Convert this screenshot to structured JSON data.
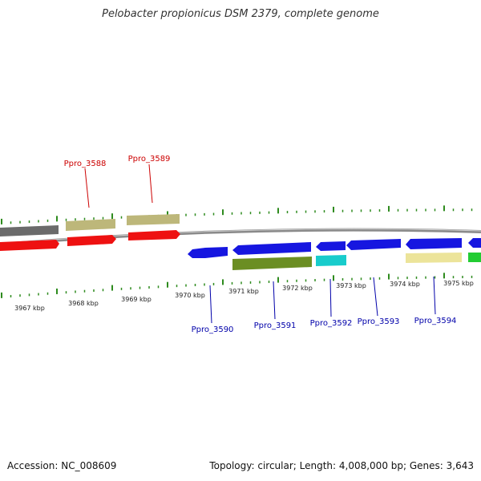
{
  "title": "Pelobacter propionicus DSM 2379, complete genome",
  "footer": {
    "accession": "Accession: NC_008609",
    "summary": "Topology: circular; Length: 4,008,000 bp; Genes: 3,643"
  },
  "ruler_labels": [
    "3967 kbp",
    "3968 kbp",
    "3969 kbp",
    "3970 kbp",
    "3971 kbp",
    "3972 kbp",
    "3973 kbp",
    "3974 kbp",
    "3975 kbp"
  ],
  "gene_labels": {
    "ppro_3588": "Ppro_3588",
    "ppro_3589": "Ppro_3589",
    "ppro_3590": "Ppro_3590",
    "ppro_3591": "Ppro_3591",
    "ppro_3592": "Ppro_3592",
    "ppro_3593": "Ppro_3593",
    "ppro_3594": "Ppro_3594"
  },
  "colors": {
    "tick": "#2e8b1e",
    "backbone": "#8a8a8a",
    "forward_label": "#cc0000",
    "reverse_label": "#0000aa",
    "gray_gene": "#6b6b6b",
    "khaki_gene": "#bdb77a",
    "red_gene": "#ee1111",
    "blue_gene": "#1616e0",
    "olive_gene": "#6b8e23",
    "cyan_gene": "#18cccc",
    "pale_yellow_gene": "#ece49a",
    "green_gene": "#22cc33"
  }
}
